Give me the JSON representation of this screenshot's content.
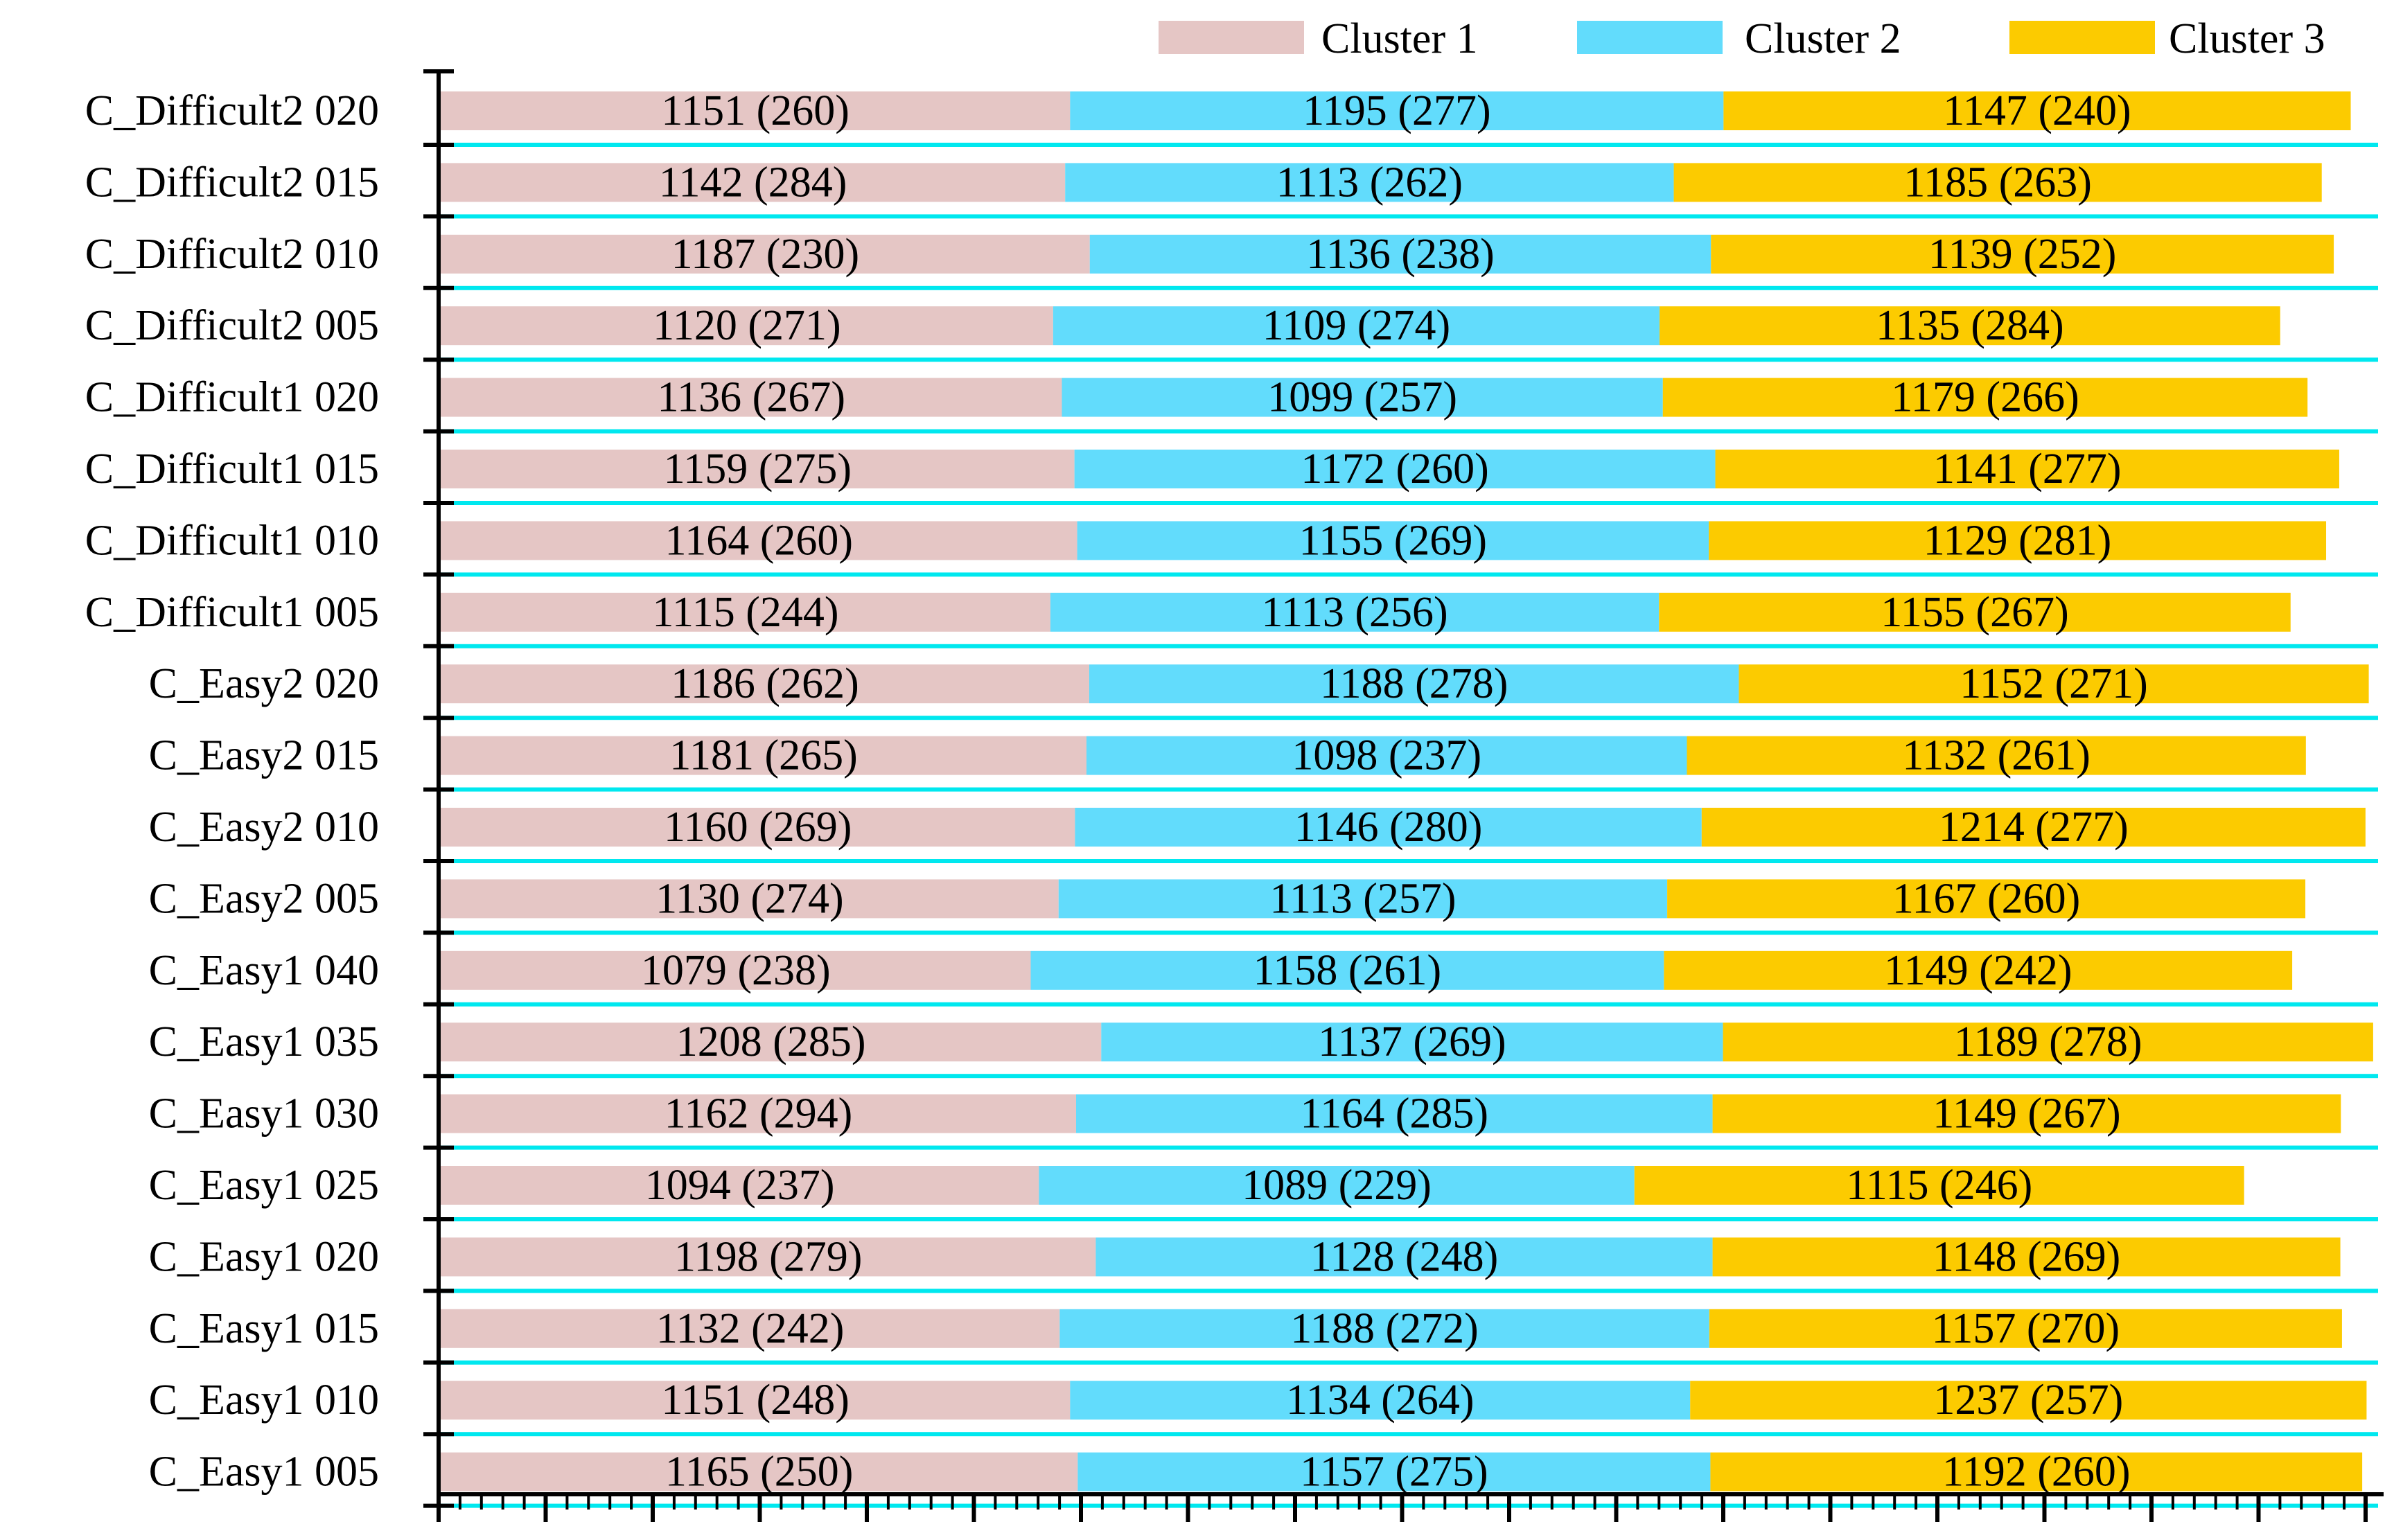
{
  "colors": {
    "cluster1": "#e5c6c5",
    "cluster2": "#62dcfc",
    "cluster3": "#fccb00",
    "separator": "#00e8ef",
    "axis": "#000000"
  },
  "chart_data": {
    "type": "bar",
    "orientation": "horizontal",
    "stacked": true,
    "legend_position": "top-right",
    "grid": false,
    "categories": [
      "C_Difficult2 020",
      "C_Difficult2 015",
      "C_Difficult2 010",
      "C_Difficult2 005",
      "C_Difficult1 020",
      "C_Difficult1 015",
      "C_Difficult1 010",
      "C_Difficult1 005",
      "C_Easy2 020",
      "C_Easy2 015",
      "C_Easy2 010",
      "C_Easy2 005",
      "C_Easy1 040",
      "C_Easy1 035",
      "C_Easy1 030",
      "C_Easy1 025",
      "C_Easy1 020",
      "C_Easy1 015",
      "C_Easy1 010",
      "C_Easy1 005"
    ],
    "series": [
      {
        "name": "Cluster 1",
        "values": [
          1151,
          1142,
          1187,
          1120,
          1136,
          1159,
          1164,
          1115,
          1186,
          1181,
          1160,
          1130,
          1079,
          1208,
          1162,
          1094,
          1198,
          1132,
          1151,
          1165
        ],
        "labels": [
          "1151 (260)",
          "1142 (284)",
          "1187 (230)",
          "1120 (271)",
          "1136 (267)",
          "1159 (275)",
          "1164 (260)",
          "1115 (244)",
          "1186 (262)",
          "1181 (265)",
          "1160 (269)",
          "1130 (274)",
          "1079 (238)",
          "1208 (285)",
          "1162 (294)",
          "1094 (237)",
          "1198 (279)",
          "1132 (242)",
          "1151 (248)",
          "1165 (250)"
        ]
      },
      {
        "name": "Cluster 2",
        "values": [
          1195,
          1113,
          1136,
          1109,
          1099,
          1172,
          1155,
          1113,
          1188,
          1098,
          1146,
          1113,
          1158,
          1137,
          1164,
          1089,
          1128,
          1188,
          1134,
          1157
        ],
        "labels": [
          "1195 (277)",
          "1113 (262)",
          "1136 (238)",
          "1109 (274)",
          "1099 (257)",
          "1172 (260)",
          "1155 (269)",
          "1113 (256)",
          "1188 (278)",
          "1098 (237)",
          "1146 (280)",
          "1113 (257)",
          "1158 (261)",
          "1137 (269)",
          "1164 (285)",
          "1089 (229)",
          "1128 (248)",
          "1188 (272)",
          "1134 (264)",
          "1157 (275)"
        ]
      },
      {
        "name": "Cluster 3",
        "values": [
          1147,
          1185,
          1139,
          1135,
          1179,
          1141,
          1129,
          1155,
          1152,
          1132,
          1214,
          1167,
          1149,
          1189,
          1149,
          1115,
          1148,
          1157,
          1237,
          1192
        ],
        "labels": [
          "1147 (240)",
          "1185 (263)",
          "1139 (252)",
          "1135 (284)",
          "1179 (266)",
          "1141 (277)",
          "1129 (281)",
          "1155 (267)",
          "1152 (271)",
          "1132 (261)",
          "1214 (277)",
          "1167 (260)",
          "1149 (242)",
          "1189 (278)",
          "1149 (267)",
          "1115 (246)",
          "1148 (269)",
          "1157 (270)",
          "1237 (257)",
          "1192 (260)"
        ]
      }
    ],
    "xlim": [
      0,
      3543
    ]
  }
}
